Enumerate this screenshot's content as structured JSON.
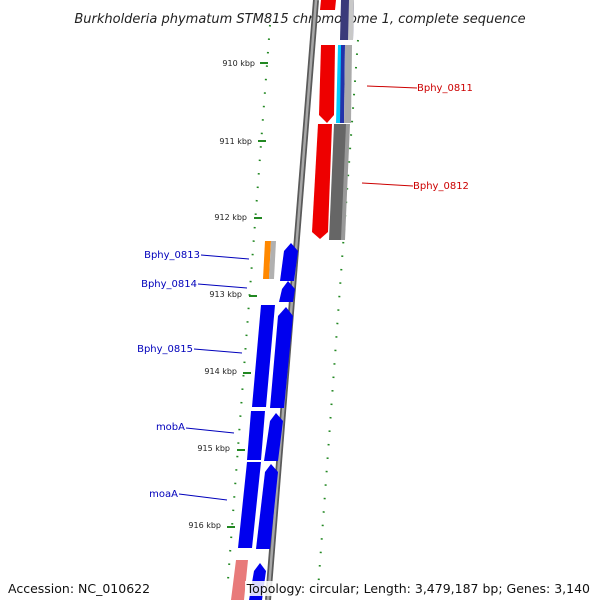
{
  "title": "Burkholderia phymatum STM815 chromosome 1, complete sequence",
  "accession_label": "Accession: NC_010622",
  "topology_label": "Topology: circular; Length: 3,479,187 bp; Genes: 3,140",
  "ruler": {
    "ticks": [
      "910 kbp",
      "911 kbp",
      "912 kbp",
      "913 kbp",
      "914 kbp",
      "915 kbp",
      "916 kbp"
    ]
  },
  "genes": [
    {
      "label": "Bphy_0811",
      "color": "#cc0000"
    },
    {
      "label": "Bphy_0812",
      "color": "#cc0000"
    },
    {
      "label": "Bphy_0813",
      "color": "#0000bb"
    },
    {
      "label": "Bphy_0814",
      "color": "#0000bb"
    },
    {
      "label": "Bphy_0815",
      "color": "#0000bb"
    },
    {
      "label": "mobA",
      "color": "#0000bb"
    },
    {
      "label": "moaA",
      "color": "#0000bb"
    }
  ],
  "colors": {
    "backbone": "#808080",
    "forward_strand": "#0000ee",
    "reverse_strand": "#ee0000",
    "gc_skew": "#555555",
    "tick": "#228822",
    "cyan": "#00ccff",
    "orange": "#ff8800",
    "navy": "#3a3a7a"
  }
}
